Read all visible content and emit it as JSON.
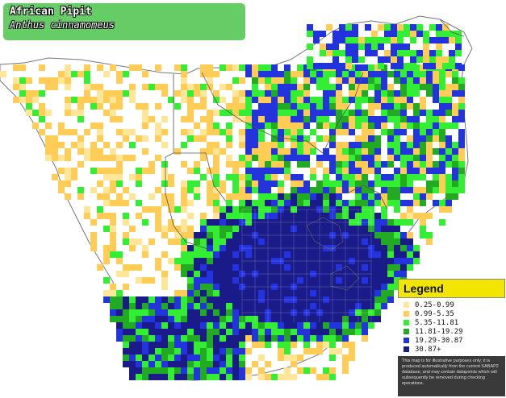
{
  "title": {
    "common_name": "African Pipit",
    "scientific_name": "Anthus cinnamomeus"
  },
  "legend": {
    "heading": "Legend",
    "items": [
      {
        "label": "0.25-0.99",
        "color": "#ffe699"
      },
      {
        "label": "0.99-5.35",
        "color": "#ffcc55"
      },
      {
        "label": "5.35-11.81",
        "color": "#33ee33"
      },
      {
        "label": "11.81-19.29",
        "color": "#22aa22"
      },
      {
        "label": "19.29-30.87",
        "color": "#2233dd"
      },
      {
        "label": "30.87+",
        "color": "#1a1a88"
      }
    ],
    "note": "This map is for illustrative purposes only; it is produced automatically from the current SABAP2 database, and may contain datapoints which will subsequently be removed during checking operations."
  },
  "colors": {
    "pale": "#ffe699",
    "yellow": "#ffcc55",
    "green": "#33ee33",
    "dark_green": "#22aa22",
    "blue": "#2233dd",
    "navy": "#1a1a88"
  }
}
